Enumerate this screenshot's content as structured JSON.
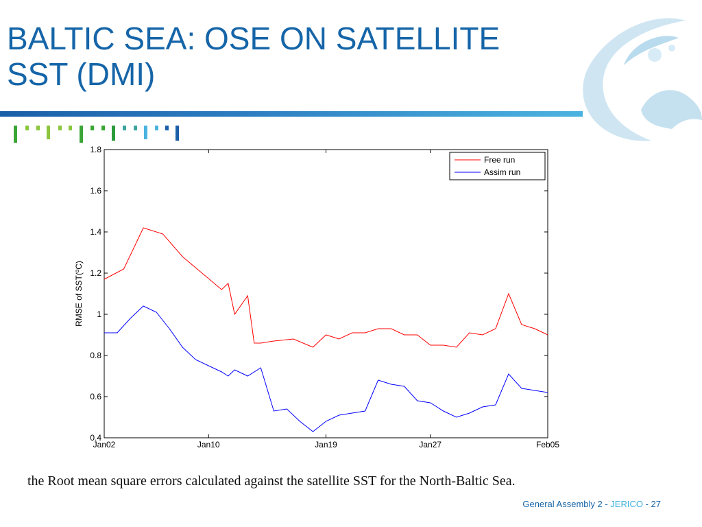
{
  "slide": {
    "title_line1": "BALTIC SEA: OSE ON SATELLITE",
    "title_line2": "SST (DMI)",
    "caption": "the Root mean square errors calculated against the satellite SST for the North-Baltic Sea.",
    "footer_text": "General Assembly 2 - ",
    "footer_accent": "JERICO",
    "footer_sep": " - ",
    "page_number": "27",
    "colors": {
      "title": "#1565a8",
      "rule": "#2c7cc0",
      "accent": "#3ab0dd",
      "bar_green": "#3aa535"
    }
  },
  "chart_data": {
    "type": "line",
    "xlabel": "",
    "ylabel": "RMSE of SST(ºC)",
    "ylim": [
      0.4,
      1.8
    ],
    "yticks": [
      "0.4",
      "0.6",
      "0.8",
      "1",
      "1.2",
      "1.4",
      "1.6",
      "1.8"
    ],
    "xlim": [
      0,
      34
    ],
    "xticks": [
      {
        "x": 0,
        "label": "Jan02"
      },
      {
        "x": 8,
        "label": "Jan10"
      },
      {
        "x": 17,
        "label": "Jan19"
      },
      {
        "x": 25,
        "label": "Jan27"
      },
      {
        "x": 34,
        "label": "Feb05"
      }
    ],
    "legend_position": "top-right",
    "series": [
      {
        "name": "Free run",
        "color": "#ff0000",
        "x": [
          0,
          1.5,
          3,
          4.5,
          6,
          7.5,
          9,
          9.5,
          10,
          11,
          11.5,
          12,
          13,
          14.5,
          16,
          17,
          18,
          19,
          20,
          21,
          22,
          23,
          24,
          25,
          26,
          27,
          28,
          29,
          30,
          31,
          32,
          33,
          34
        ],
        "values": [
          1.17,
          1.22,
          1.42,
          1.39,
          1.28,
          1.2,
          1.12,
          1.15,
          1.0,
          1.09,
          0.86,
          0.86,
          0.87,
          0.88,
          0.84,
          0.9,
          0.88,
          0.91,
          0.91,
          0.93,
          0.93,
          0.9,
          0.9,
          0.85,
          0.85,
          0.84,
          0.91,
          0.9,
          0.93,
          1.1,
          0.95,
          0.93,
          0.9
        ]
      },
      {
        "name": "Assim run",
        "color": "#0000ff",
        "x": [
          0,
          1,
          2,
          3,
          4,
          5,
          6,
          7,
          8,
          9,
          9.5,
          10,
          11,
          12,
          13,
          14,
          15,
          16,
          17,
          18,
          19,
          20,
          21,
          22,
          23,
          24,
          25,
          26,
          27,
          28,
          29,
          30,
          31,
          32,
          33,
          34
        ],
        "values": [
          0.91,
          0.91,
          0.98,
          1.04,
          1.01,
          0.93,
          0.84,
          0.78,
          0.75,
          0.72,
          0.7,
          0.73,
          0.7,
          0.74,
          0.53,
          0.54,
          0.48,
          0.43,
          0.48,
          0.51,
          0.52,
          0.53,
          0.68,
          0.66,
          0.65,
          0.58,
          0.57,
          0.53,
          0.5,
          0.52,
          0.55,
          0.56,
          0.71,
          0.64,
          0.63,
          0.62
        ]
      }
    ]
  }
}
